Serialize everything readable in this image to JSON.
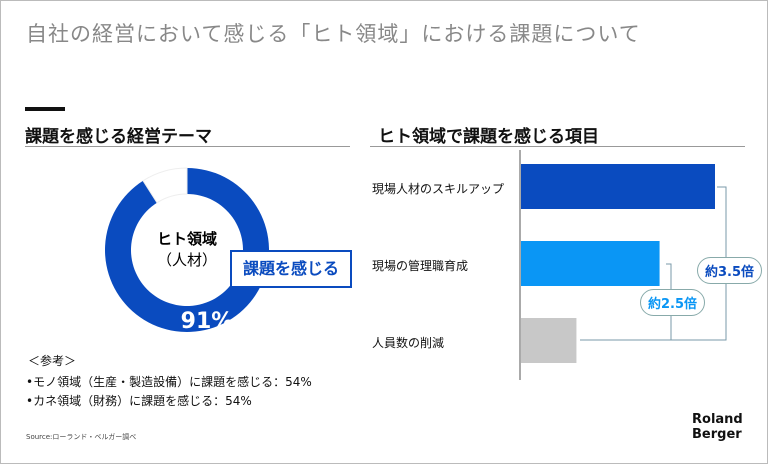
{
  "title": "自社の経営において感じる「ヒト領域」における課題について",
  "left": {
    "heading": "課題を感じる経営テーマ",
    "center_line1": "ヒト領域",
    "center_line2": "（人材）",
    "callout": "課題を感じる",
    "percent_label": "91%",
    "notes": [
      "＜参考＞",
      "•モノ領域（生産・製造設備）に課題を感じる：54%",
      "•カネ領域（財務）に課題を感じる：54%"
    ]
  },
  "right": {
    "heading": "ヒト領域で課題を感じる項目",
    "ratio1": "約3.5倍",
    "ratio2": "約2.5倍"
  },
  "source": "Source:ローランド・ベルガー調べ",
  "logo": "Roland Berger",
  "chart_data": [
    {
      "type": "pie",
      "variant": "donut",
      "values": [
        91,
        9
      ],
      "colors": [
        "#0a4bbf",
        "#ffffff"
      ],
      "label": "91%"
    },
    {
      "type": "bar",
      "orientation": "horizontal",
      "categories": [
        "現場人材のスキルアップ",
        "現場の管理職育成",
        "人員数の削減"
      ],
      "values": [
        3.5,
        2.5,
        1
      ],
      "colors": [
        "#0a4bbf",
        "#0a96f5",
        "#c8c8c8"
      ],
      "annotations": [
        "約3.5倍",
        "約2.5倍"
      ]
    }
  ]
}
